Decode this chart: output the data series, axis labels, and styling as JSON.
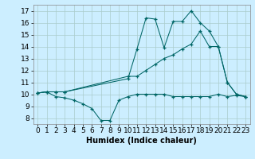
{
  "line1_x": [
    0,
    1,
    2,
    3,
    4,
    5,
    6,
    7,
    8,
    9,
    10,
    11,
    12,
    13,
    14,
    15,
    16,
    17,
    18,
    19,
    20,
    21,
    22,
    23
  ],
  "line1_y": [
    10.1,
    10.2,
    9.8,
    9.7,
    9.5,
    9.2,
    8.8,
    7.8,
    7.8,
    9.5,
    9.8,
    10.0,
    10.0,
    10.0,
    10.0,
    9.8,
    9.8,
    9.8,
    9.8,
    9.8,
    10.0,
    9.8,
    9.9,
    9.8
  ],
  "line2_x": [
    0,
    1,
    2,
    3,
    10,
    11,
    12,
    13,
    14,
    15,
    16,
    17,
    18,
    19,
    20,
    21,
    22,
    23
  ],
  "line2_y": [
    10.1,
    10.2,
    10.2,
    10.2,
    11.5,
    11.5,
    12.0,
    12.5,
    13.0,
    13.3,
    13.8,
    14.2,
    15.3,
    14.0,
    14.0,
    11.0,
    10.0,
    9.8
  ],
  "line3_x": [
    0,
    1,
    2,
    3,
    10,
    11,
    12,
    13,
    14,
    15,
    16,
    17,
    18,
    19,
    20,
    21,
    22,
    23
  ],
  "line3_y": [
    10.1,
    10.2,
    10.2,
    10.2,
    11.3,
    13.8,
    16.4,
    16.3,
    13.9,
    16.1,
    16.1,
    17.0,
    16.0,
    15.3,
    14.0,
    11.0,
    10.0,
    9.8
  ],
  "color": "#006666",
  "bg_color": "#cceeff",
  "grid_color": "#aacccc",
  "xlabel": "Humidex (Indice chaleur)",
  "xlim": [
    -0.5,
    23.5
  ],
  "ylim": [
    7.5,
    17.5
  ],
  "xticks": [
    0,
    1,
    2,
    3,
    4,
    5,
    6,
    7,
    8,
    9,
    10,
    11,
    12,
    13,
    14,
    15,
    16,
    17,
    18,
    19,
    20,
    21,
    22,
    23
  ],
  "yticks": [
    8,
    9,
    10,
    11,
    12,
    13,
    14,
    15,
    16,
    17
  ],
  "fontsize": 6.5
}
